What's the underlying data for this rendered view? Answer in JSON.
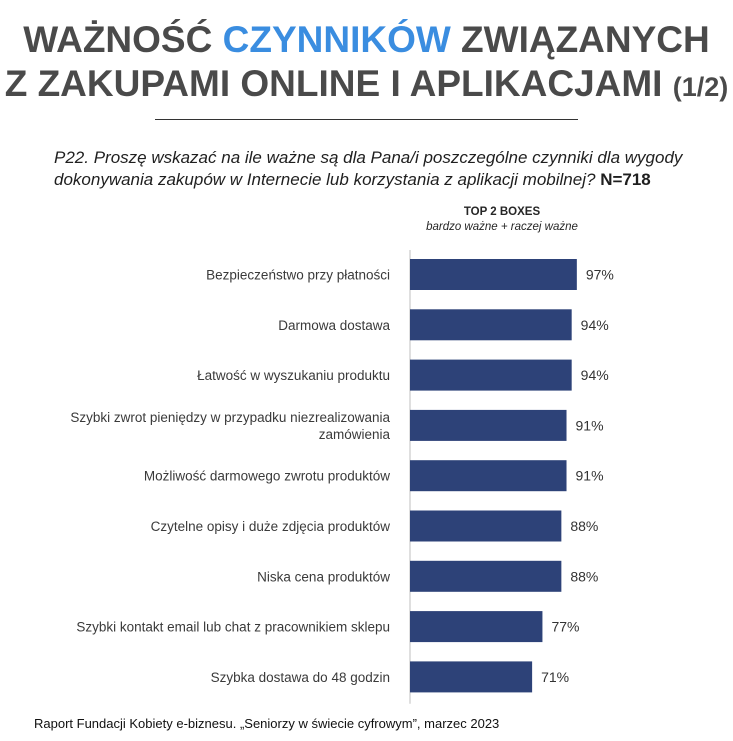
{
  "header": {
    "title_part1": "WAŻNOŚĆ ",
    "title_accent": "CZYNNIKÓW",
    "title_part2": " ZWIĄZANYCH",
    "title_line2": "Z ZAKUPAMI ONLINE I APLIKACJAMI ",
    "title_page": "(1/2)",
    "accent_color": "#3a8de0"
  },
  "question": {
    "text": "P22. Proszę wskazać na ile ważne są dla Pana/i poszczególne czynniki dla wygody dokonywania zakupów w Internecie lub korzystania z aplikacji mobilnej?",
    "sample": "N=718"
  },
  "chart_data": {
    "type": "bar",
    "orientation": "horizontal",
    "series_title": "TOP 2 BOXES",
    "series_subtitle": "bardzo ważne + raczej ważne",
    "bar_color": "#2d4278",
    "xlim": [
      0,
      100
    ],
    "grid": false,
    "categories": [
      [
        "Bezpieczeństwo przy płatności"
      ],
      [
        "Darmowa dostawa"
      ],
      [
        "Łatwość w wyszukaniu produktu"
      ],
      [
        "Szybki zwrot pieniędzy w przypadku niezrealizowania",
        "zamówienia"
      ],
      [
        "Możliwość darmowego zwrotu produktów"
      ],
      [
        "Czytelne opisy i duże zdjęcia produktów"
      ],
      [
        "Niska cena produktów"
      ],
      [
        "Szybki kontakt email lub chat z pracownikiem sklepu"
      ],
      [
        "Szybka dostawa do 48 godzin"
      ]
    ],
    "values": [
      97,
      94,
      94,
      91,
      91,
      88,
      88,
      77,
      71
    ],
    "value_labels": [
      "97%",
      "94%",
      "94%",
      "91%",
      "91%",
      "88%",
      "88%",
      "77%",
      "71%"
    ]
  },
  "footer": {
    "source": "Raport Fundacji Kobiety e-biznesu. „Seniorzy w świecie cyfrowym”, marzec 2023"
  }
}
